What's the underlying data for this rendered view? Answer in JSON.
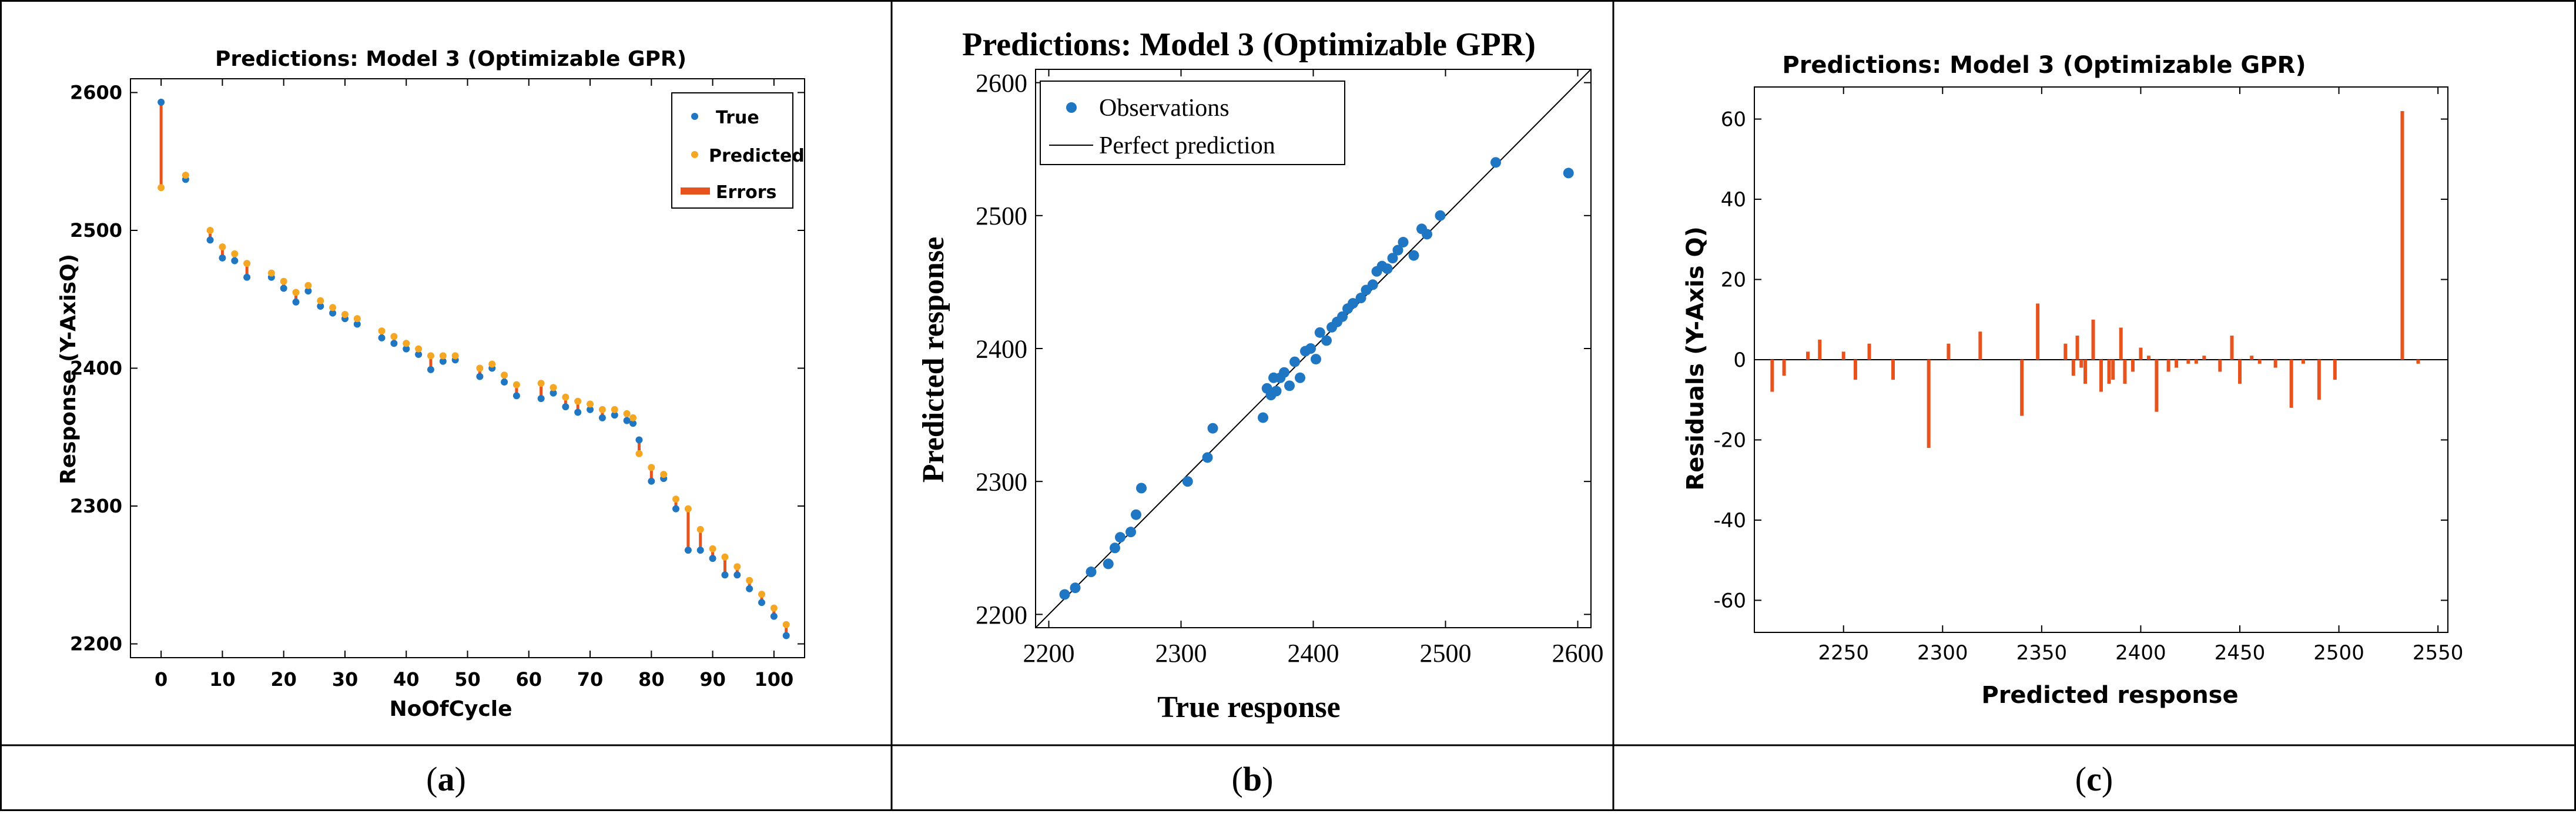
{
  "panels": {
    "a": {
      "label_prefix": "(",
      "label_letter": "a",
      "label_suffix": ")"
    },
    "b": {
      "label_prefix": "(",
      "label_letter": "b",
      "label_suffix": ")"
    },
    "c": {
      "label_prefix": "(",
      "label_letter": "c",
      "label_suffix": ")"
    }
  },
  "colors": {
    "true_blue": "#1f77c4",
    "predicted_orange": "#f5a623",
    "error_red": "#e8521c",
    "border": "#000000"
  },
  "chart_data": [
    {
      "id": "a",
      "type": "scatter",
      "title": "Predictions: Model 3 (Optimizable GPR)",
      "xlabel": "NoOfCycle",
      "ylabel": "Response (Y-AxisQ)",
      "xlim": [
        -5,
        105
      ],
      "ylim": [
        2190,
        2610
      ],
      "xticks": [
        0,
        10,
        20,
        30,
        40,
        50,
        60,
        70,
        80,
        90,
        100
      ],
      "yticks": [
        2200,
        2300,
        2400,
        2500,
        2600
      ],
      "legend": [
        "True",
        "Predicted",
        "Errors"
      ],
      "legend_position": "top-right",
      "x": [
        0,
        4,
        8,
        10,
        12,
        14,
        18,
        20,
        22,
        24,
        26,
        28,
        30,
        32,
        36,
        38,
        40,
        42,
        44,
        46,
        48,
        52,
        54,
        56,
        58,
        62,
        64,
        66,
        68,
        70,
        72,
        74,
        76,
        77,
        78,
        80,
        82,
        84,
        86,
        88,
        90,
        92,
        94,
        96,
        98,
        100,
        102
      ],
      "true": [
        2593,
        2537,
        2493,
        2480,
        2478,
        2466,
        2466,
        2458,
        2448,
        2456,
        2445,
        2440,
        2436,
        2432,
        2422,
        2418,
        2414,
        2410,
        2399,
        2405,
        2406,
        2394,
        2400,
        2390,
        2380,
        2378,
        2382,
        2372,
        2368,
        2370,
        2364,
        2366,
        2362,
        2360,
        2348,
        2318,
        2320,
        2298,
        2268,
        2268,
        2262,
        2250,
        2250,
        2240,
        2230,
        2220,
        2206
      ],
      "predicted": [
        2531,
        2540,
        2500,
        2488,
        2483,
        2476,
        2469,
        2463,
        2455,
        2460,
        2449,
        2444,
        2439,
        2436,
        2427,
        2423,
        2418,
        2414,
        2409,
        2409,
        2409,
        2400,
        2403,
        2395,
        2388,
        2389,
        2386,
        2379,
        2376,
        2374,
        2370,
        2370,
        2367,
        2364,
        2338,
        2328,
        2323,
        2305,
        2298,
        2283,
        2269,
        2263,
        2256,
        2246,
        2236,
        2226,
        2214
      ]
    },
    {
      "id": "b",
      "type": "scatter",
      "title": "Predictions: Model 3 (Optimizable GPR)",
      "xlabel": "True response",
      "ylabel": "Predicted response",
      "xlim": [
        2190,
        2610
      ],
      "ylim": [
        2190,
        2610
      ],
      "xticks": [
        2200,
        2300,
        2400,
        2500,
        2600
      ],
      "yticks": [
        2200,
        2300,
        2400,
        2500,
        2600
      ],
      "legend": [
        "Observations",
        "Perfect prediction"
      ],
      "legend_position": "top-left",
      "x": [
        2212,
        2220,
        2232,
        2245,
        2250,
        2254,
        2262,
        2266,
        2270,
        2305,
        2320,
        2324,
        2362,
        2365,
        2368,
        2370,
        2372,
        2375,
        2378,
        2382,
        2386,
        2390,
        2394,
        2398,
        2402,
        2405,
        2410,
        2414,
        2418,
        2422,
        2426,
        2430,
        2436,
        2440,
        2445,
        2448,
        2452,
        2456,
        2460,
        2464,
        2468,
        2476,
        2482,
        2486,
        2496,
        2538,
        2593
      ],
      "y": [
        2215,
        2220,
        2232,
        2238,
        2250,
        2258,
        2262,
        2275,
        2295,
        2300,
        2318,
        2340,
        2348,
        2370,
        2365,
        2378,
        2368,
        2378,
        2382,
        2372,
        2390,
        2378,
        2398,
        2400,
        2392,
        2412,
        2406,
        2416,
        2420,
        2424,
        2430,
        2434,
        2438,
        2444,
        2448,
        2458,
        2462,
        2460,
        2468,
        2474,
        2480,
        2470,
        2490,
        2486,
        2500,
        2540,
        2532
      ]
    },
    {
      "id": "c",
      "type": "bar",
      "title": "Predictions: Model 3 (Optimizable GPR)",
      "xlabel": "Predicted response",
      "ylabel": "Residuals (Y-Axis Q)",
      "xlim": [
        2205,
        2555
      ],
      "ylim": [
        -68,
        68
      ],
      "xticks": [
        2250,
        2300,
        2350,
        2400,
        2450,
        2500,
        2550
      ],
      "yticks": [
        -60,
        -40,
        -20,
        0,
        20,
        40,
        60
      ],
      "x": [
        2214,
        2220,
        2232,
        2238,
        2250,
        2256,
        2263,
        2275,
        2293,
        2303,
        2319,
        2340,
        2348,
        2362,
        2366,
        2368,
        2370,
        2372,
        2376,
        2380,
        2384,
        2386,
        2390,
        2392,
        2396,
        2400,
        2404,
        2408,
        2414,
        2418,
        2424,
        2428,
        2432,
        2440,
        2446,
        2450,
        2456,
        2460,
        2468,
        2476,
        2482,
        2490,
        2498,
        2532,
        2540
      ],
      "residuals": [
        -8,
        -4,
        2,
        5,
        2,
        -5,
        4,
        -5,
        -22,
        4,
        7,
        -14,
        14,
        4,
        -4,
        6,
        -2,
        -6,
        10,
        -8,
        -6,
        -5,
        8,
        -6,
        -3,
        3,
        1,
        -13,
        -3,
        -2,
        -1,
        -1,
        1,
        -3,
        6,
        -6,
        1,
        -1,
        -2,
        -12,
        -1,
        -10,
        -5,
        62,
        -1
      ]
    }
  ]
}
